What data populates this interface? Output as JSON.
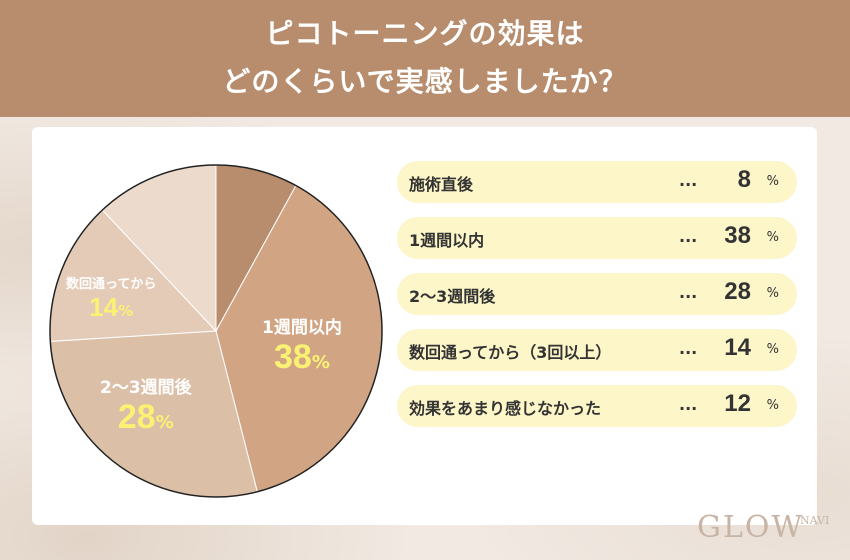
{
  "title_line1": "ピコトーニングの効果は",
  "title_line2": "どのくらいで実感しましたか？",
  "logo": {
    "text": "GLOW",
    "sub": "NAVI"
  },
  "colors": {
    "header": "#b78d6d",
    "slices": [
      "#b78d6d",
      "#d1a584",
      "#dcbfa7",
      "#e4cbb7",
      "#ecdbcc"
    ],
    "legend_bg": "#fdf6c8",
    "label_value": "#fbf173"
  },
  "chart_data": {
    "type": "pie",
    "unit": "%",
    "categories": [
      "施術直後",
      "1週間以内",
      "2〜3週間後",
      "数回通ってから（3回以上）",
      "効果をあまり感じなかった"
    ],
    "values": [
      8,
      38,
      28,
      14,
      12
    ],
    "slice_labels": [
      {
        "index": 1,
        "text": "1週間以内",
        "value": "38",
        "unit": "%"
      },
      {
        "index": 2,
        "text": "2〜3週間後",
        "value": "28",
        "unit": "%"
      },
      {
        "index": 3,
        "text": "数回通ってから",
        "value": "14",
        "unit": "%"
      }
    ]
  },
  "legend": [
    {
      "label": "施術直後",
      "dots": "...",
      "value": "8",
      "unit": "%"
    },
    {
      "label": "1週間以内",
      "dots": "...",
      "value": "38",
      "unit": "%"
    },
    {
      "label": "2〜3週間後",
      "dots": "...",
      "value": "28",
      "unit": "%"
    },
    {
      "label": "数回通ってから（3回以上）",
      "dots": "...",
      "value": "14",
      "unit": "%"
    },
    {
      "label": "効果をあまり感じなかった",
      "dots": "...",
      "value": "12",
      "unit": "%"
    }
  ]
}
